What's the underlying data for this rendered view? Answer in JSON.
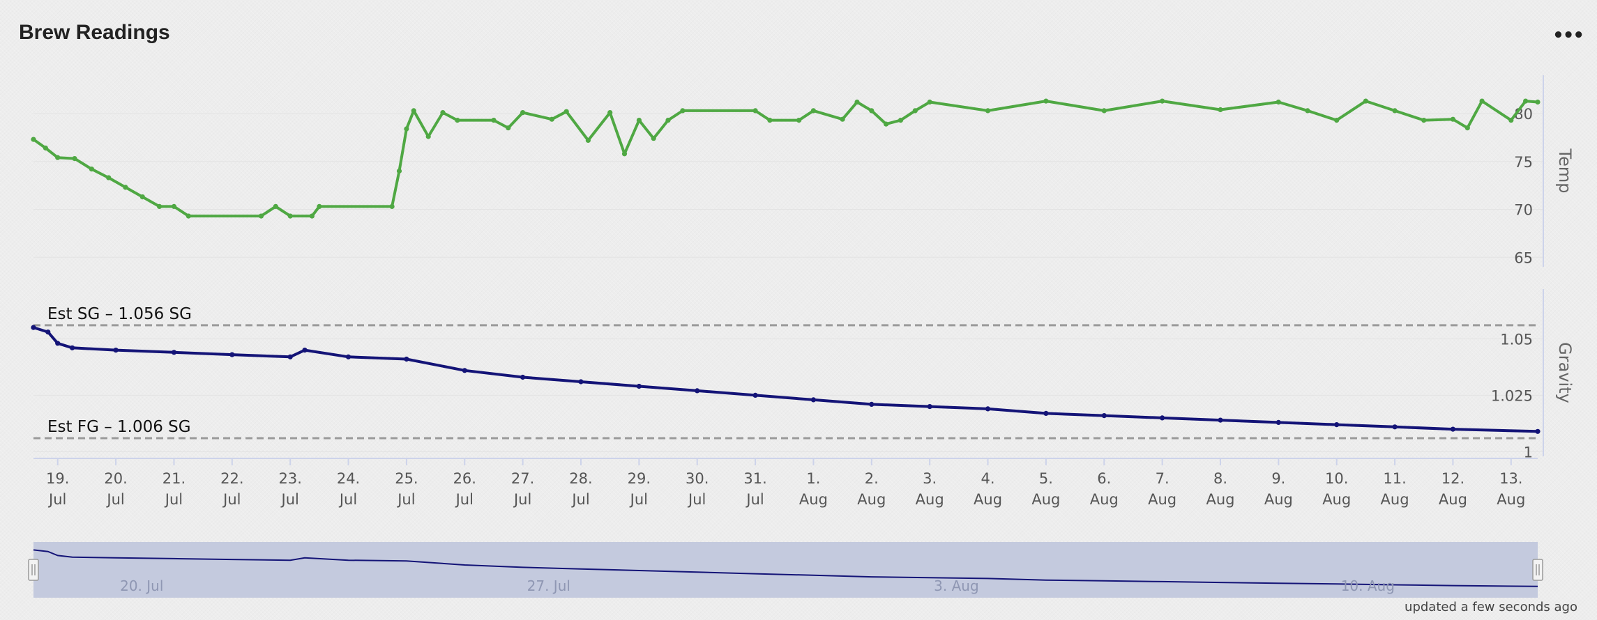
{
  "header": {
    "title": "Brew Readings",
    "menu_icon": "ellipsis-icon"
  },
  "footer": {
    "updated_text": "updated a few seconds ago"
  },
  "chart_data": {
    "type": "line",
    "x_axis": {
      "type": "datetime",
      "range": [
        "2017-07-18T14:00",
        "2017-08-13T11:00"
      ],
      "tick_labels": [
        [
          "19.",
          "Jul"
        ],
        [
          "20.",
          "Jul"
        ],
        [
          "21.",
          "Jul"
        ],
        [
          "22.",
          "Jul"
        ],
        [
          "23.",
          "Jul"
        ],
        [
          "24.",
          "Jul"
        ],
        [
          "25.",
          "Jul"
        ],
        [
          "26.",
          "Jul"
        ],
        [
          "27.",
          "Jul"
        ],
        [
          "28.",
          "Jul"
        ],
        [
          "29.",
          "Jul"
        ],
        [
          "30.",
          "Jul"
        ],
        [
          "31.",
          "Jul"
        ],
        [
          "1.",
          "Aug"
        ],
        [
          "2.",
          "Aug"
        ],
        [
          "3.",
          "Aug"
        ],
        [
          "4.",
          "Aug"
        ],
        [
          "5.",
          "Aug"
        ],
        [
          "6.",
          "Aug"
        ],
        [
          "7.",
          "Aug"
        ],
        [
          "8.",
          "Aug"
        ],
        [
          "9.",
          "Aug"
        ],
        [
          "10.",
          "Aug"
        ],
        [
          "11.",
          "Aug"
        ],
        [
          "12.",
          "Aug"
        ],
        [
          "13.",
          "Aug"
        ]
      ]
    },
    "panes": [
      {
        "y_label": "Temp",
        "y_ticks": [
          "65",
          "70",
          "75",
          "80"
        ],
        "ylim": [
          64,
          84
        ],
        "series": [
          {
            "color": "#4fa843",
            "points": [
              [
                "2017-07-18T14:00",
                77.3
              ],
              [
                "2017-07-18T19:00",
                76.4
              ],
              [
                "2017-07-19T00:00",
                75.4
              ],
              [
                "2017-07-19T07:00",
                75.3
              ],
              [
                "2017-07-19T14:00",
                74.2
              ],
              [
                "2017-07-19T21:00",
                73.3
              ],
              [
                "2017-07-20T04:00",
                72.3
              ],
              [
                "2017-07-20T11:00",
                71.3
              ],
              [
                "2017-07-20T18:00",
                70.3
              ],
              [
                "2017-07-21T00:00",
                70.3
              ],
              [
                "2017-07-21T06:00",
                69.3
              ],
              [
                "2017-07-22T12:00",
                69.3
              ],
              [
                "2017-07-22T18:00",
                70.3
              ],
              [
                "2017-07-23T00:00",
                69.3
              ],
              [
                "2017-07-23T09:00",
                69.3
              ],
              [
                "2017-07-23T12:00",
                70.3
              ],
              [
                "2017-07-24T18:00",
                70.3
              ],
              [
                "2017-07-24T21:00",
                74.0
              ],
              [
                "2017-07-25T00:00",
                78.4
              ],
              [
                "2017-07-25T03:00",
                80.3
              ],
              [
                "2017-07-25T09:00",
                77.6
              ],
              [
                "2017-07-25T15:00",
                80.1
              ],
              [
                "2017-07-25T21:00",
                79.3
              ],
              [
                "2017-07-26T12:00",
                79.3
              ],
              [
                "2017-07-26T18:00",
                78.5
              ],
              [
                "2017-07-27T00:00",
                80.1
              ],
              [
                "2017-07-27T12:00",
                79.4
              ],
              [
                "2017-07-27T18:00",
                80.2
              ],
              [
                "2017-07-28T03:00",
                77.2
              ],
              [
                "2017-07-28T12:00",
                80.1
              ],
              [
                "2017-07-28T18:00",
                75.8
              ],
              [
                "2017-07-29T00:00",
                79.3
              ],
              [
                "2017-07-29T06:00",
                77.4
              ],
              [
                "2017-07-29T12:00",
                79.3
              ],
              [
                "2017-07-29T18:00",
                80.3
              ],
              [
                "2017-07-31T00:00",
                80.3
              ],
              [
                "2017-07-31T06:00",
                79.3
              ],
              [
                "2017-07-31T18:00",
                79.3
              ],
              [
                "2017-08-01T00:00",
                80.3
              ],
              [
                "2017-08-01T12:00",
                79.4
              ],
              [
                "2017-08-01T18:00",
                81.2
              ],
              [
                "2017-08-02T00:00",
                80.3
              ],
              [
                "2017-08-02T06:00",
                78.9
              ],
              [
                "2017-08-02T12:00",
                79.3
              ],
              [
                "2017-08-02T18:00",
                80.3
              ],
              [
                "2017-08-03T00:00",
                81.2
              ],
              [
                "2017-08-04T00:00",
                80.3
              ],
              [
                "2017-08-05T00:00",
                81.3
              ],
              [
                "2017-08-06T00:00",
                80.3
              ],
              [
                "2017-08-07T00:00",
                81.3
              ],
              [
                "2017-08-08T00:00",
                80.4
              ],
              [
                "2017-08-09T00:00",
                81.2
              ],
              [
                "2017-08-09T12:00",
                80.3
              ],
              [
                "2017-08-10T00:00",
                79.3
              ],
              [
                "2017-08-10T12:00",
                81.3
              ],
              [
                "2017-08-11T00:00",
                80.3
              ],
              [
                "2017-08-11T12:00",
                79.3
              ],
              [
                "2017-08-12T00:00",
                79.4
              ],
              [
                "2017-08-12T06:00",
                78.5
              ],
              [
                "2017-08-12T12:00",
                81.3
              ],
              [
                "2017-08-13T00:00",
                79.3
              ],
              [
                "2017-08-13T06:00",
                81.3
              ],
              [
                "2017-08-13T11:00",
                81.2
              ]
            ]
          }
        ]
      },
      {
        "y_label": "Gravity",
        "y_ticks": [
          "1",
          "1.025",
          "1.05"
        ],
        "ylim": [
          0.998,
          1.072
        ],
        "plot_lines": [
          {
            "value": 1.056,
            "label": "Est SG – 1.056 SG",
            "style": "dashed",
            "color": "#9a9a9a"
          },
          {
            "value": 1.006,
            "label": "Est FG – 1.006 SG",
            "style": "dashed",
            "color": "#9a9a9a"
          }
        ],
        "series": [
          {
            "color": "#141477",
            "points": [
              [
                "2017-07-18T14:00",
                1.055
              ],
              [
                "2017-07-18T20:00",
                1.053
              ],
              [
                "2017-07-19T00:00",
                1.048
              ],
              [
                "2017-07-19T06:00",
                1.046
              ],
              [
                "2017-07-20T00:00",
                1.045
              ],
              [
                "2017-07-21T00:00",
                1.044
              ],
              [
                "2017-07-22T00:00",
                1.043
              ],
              [
                "2017-07-23T00:00",
                1.042
              ],
              [
                "2017-07-23T06:00",
                1.045
              ],
              [
                "2017-07-24T00:00",
                1.042
              ],
              [
                "2017-07-25T00:00",
                1.041
              ],
              [
                "2017-07-26T00:00",
                1.036
              ],
              [
                "2017-07-27T00:00",
                1.033
              ],
              [
                "2017-07-28T00:00",
                1.031
              ],
              [
                "2017-07-29T00:00",
                1.029
              ],
              [
                "2017-07-30T00:00",
                1.027
              ],
              [
                "2017-07-31T00:00",
                1.025
              ],
              [
                "2017-08-01T00:00",
                1.023
              ],
              [
                "2017-08-02T00:00",
                1.021
              ],
              [
                "2017-08-03T00:00",
                1.02
              ],
              [
                "2017-08-04T00:00",
                1.019
              ],
              [
                "2017-08-05T00:00",
                1.017
              ],
              [
                "2017-08-06T00:00",
                1.016
              ],
              [
                "2017-08-07T00:00",
                1.015
              ],
              [
                "2017-08-08T00:00",
                1.014
              ],
              [
                "2017-08-09T00:00",
                1.013
              ],
              [
                "2017-08-10T00:00",
                1.012
              ],
              [
                "2017-08-11T00:00",
                1.011
              ],
              [
                "2017-08-12T00:00",
                1.01
              ],
              [
                "2017-08-13T11:00",
                1.009
              ]
            ]
          }
        ]
      }
    ],
    "navigator": {
      "labels": [
        "20. Jul",
        "27. Jul",
        "3. Aug",
        "10. Aug"
      ],
      "label_dates": [
        "2017-07-20",
        "2017-07-27",
        "2017-08-03",
        "2017-08-10"
      ],
      "selected_range": [
        "2017-07-18T14:00",
        "2017-08-13T11:00"
      ]
    }
  }
}
